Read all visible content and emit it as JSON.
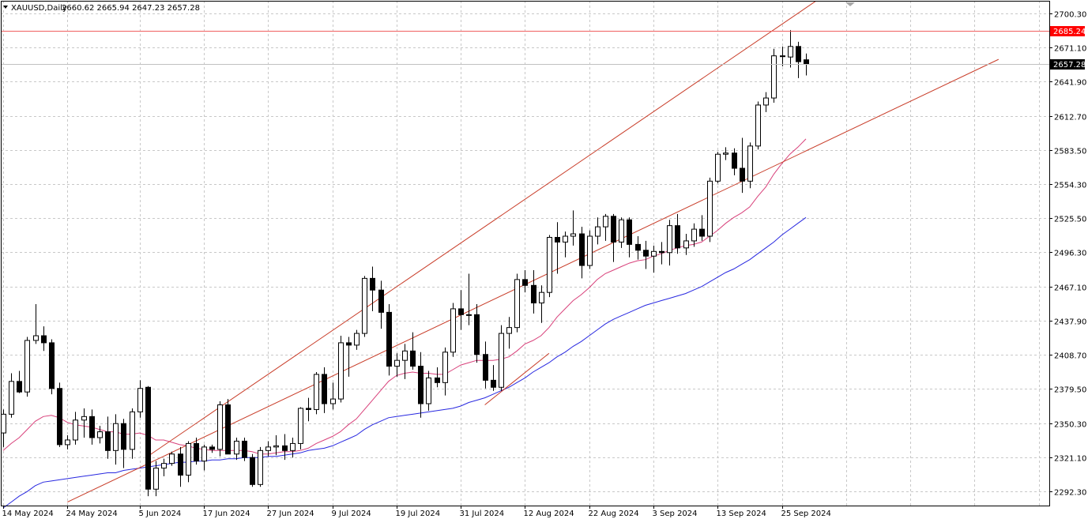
{
  "header": {
    "symbol": "XAUUSD,Daily",
    "ohlc": "2660.62 2665.94 2647.23 2657.28",
    "menu_icon": "triangle-down-icon"
  },
  "colors": {
    "background": "#ffffff",
    "grid": "#c8c8c8",
    "axis": "#000000",
    "candle_bull_fill": "#ffffff",
    "candle_bear_fill": "#000000",
    "ma_fast": "#d8407a",
    "ma_slow": "#2828e0",
    "channel": "#c83c28",
    "resistance": "#f06060",
    "resistance_badge": "#ff0000",
    "price_line": "#c0c0c0",
    "price_badge": "#000000"
  },
  "chart_data": {
    "type": "candlestick",
    "symbol": "XAUUSD",
    "timeframe": "Daily",
    "ylim": [
      2280.0,
      2711.0
    ],
    "y_ticks": [
      "2700.30",
      "2671.10",
      "2641.90",
      "2612.70",
      "2583.50",
      "2554.30",
      "2525.50",
      "2496.30",
      "2467.10",
      "2437.90",
      "2408.70",
      "2379.50",
      "2350.30",
      "2321.10",
      "2292.30"
    ],
    "x_labels": [
      {
        "index": 0,
        "label": "14 May 2024"
      },
      {
        "index": 8,
        "label": "24 May 2024"
      },
      {
        "index": 17,
        "label": "5 Jun 2024"
      },
      {
        "index": 25,
        "label": "17 Jun 2024"
      },
      {
        "index": 33,
        "label": "27 Jun 2024"
      },
      {
        "index": 41,
        "label": "9 Jul 2024"
      },
      {
        "index": 49,
        "label": "19 Jul 2024"
      },
      {
        "index": 57,
        "label": "31 Jul 2024"
      },
      {
        "index": 65,
        "label": "12 Aug 2024"
      },
      {
        "index": 73,
        "label": "22 Aug 2024"
      },
      {
        "index": 81,
        "label": "3 Sep 2024"
      },
      {
        "index": 89,
        "label": "13 Sep 2024"
      },
      {
        "index": 97,
        "label": "25 Sep 2024"
      }
    ],
    "candles": [
      {
        "o": 2342,
        "h": 2362,
        "l": 2330,
        "c": 2358
      },
      {
        "o": 2358,
        "h": 2393,
        "l": 2355,
        "c": 2386
      },
      {
        "o": 2386,
        "h": 2395,
        "l": 2376,
        "c": 2377
      },
      {
        "o": 2377,
        "h": 2424,
        "l": 2373,
        "c": 2421
      },
      {
        "o": 2421,
        "h": 2452,
        "l": 2418,
        "c": 2425
      },
      {
        "o": 2425,
        "h": 2433,
        "l": 2412,
        "c": 2419
      },
      {
        "o": 2419,
        "h": 2422,
        "l": 2375,
        "c": 2380
      },
      {
        "o": 2380,
        "h": 2385,
        "l": 2330,
        "c": 2332
      },
      {
        "o": 2332,
        "h": 2340,
        "l": 2328,
        "c": 2336
      },
      {
        "o": 2336,
        "h": 2360,
        "l": 2332,
        "c": 2353
      },
      {
        "o": 2353,
        "h": 2363,
        "l": 2338,
        "c": 2356
      },
      {
        "o": 2356,
        "h": 2362,
        "l": 2332,
        "c": 2338
      },
      {
        "o": 2338,
        "h": 2348,
        "l": 2333,
        "c": 2343
      },
      {
        "o": 2343,
        "h": 2356,
        "l": 2320,
        "c": 2327
      },
      {
        "o": 2327,
        "h": 2358,
        "l": 2315,
        "c": 2350
      },
      {
        "o": 2350,
        "h": 2354,
        "l": 2312,
        "c": 2328
      },
      {
        "o": 2328,
        "h": 2363,
        "l": 2320,
        "c": 2360
      },
      {
        "o": 2360,
        "h": 2387,
        "l": 2355,
        "c": 2380
      },
      {
        "o": 2381,
        "h": 2382,
        "l": 2288,
        "c": 2294
      },
      {
        "o": 2294,
        "h": 2318,
        "l": 2288,
        "c": 2312
      },
      {
        "o": 2312,
        "h": 2320,
        "l": 2305,
        "c": 2316
      },
      {
        "o": 2316,
        "h": 2326,
        "l": 2314,
        "c": 2324
      },
      {
        "o": 2324,
        "h": 2330,
        "l": 2296,
        "c": 2306
      },
      {
        "o": 2306,
        "h": 2335,
        "l": 2300,
        "c": 2333
      },
      {
        "o": 2333,
        "h": 2338,
        "l": 2315,
        "c": 2318
      },
      {
        "o": 2318,
        "h": 2332,
        "l": 2310,
        "c": 2330
      },
      {
        "o": 2330,
        "h": 2332,
        "l": 2325,
        "c": 2328
      },
      {
        "o": 2328,
        "h": 2369,
        "l": 2322,
        "c": 2366
      },
      {
        "o": 2366,
        "h": 2371,
        "l": 2324,
        "c": 2324
      },
      {
        "o": 2324,
        "h": 2338,
        "l": 2319,
        "c": 2335
      },
      {
        "o": 2335,
        "h": 2338,
        "l": 2318,
        "c": 2321
      },
      {
        "o": 2321,
        "h": 2324,
        "l": 2296,
        "c": 2298
      },
      {
        "o": 2298,
        "h": 2330,
        "l": 2296,
        "c": 2327
      },
      {
        "o": 2327,
        "h": 2335,
        "l": 2322,
        "c": 2330
      },
      {
        "o": 2330,
        "h": 2340,
        "l": 2323,
        "c": 2331
      },
      {
        "o": 2331,
        "h": 2341,
        "l": 2319,
        "c": 2327
      },
      {
        "o": 2327,
        "h": 2338,
        "l": 2321,
        "c": 2333
      },
      {
        "o": 2333,
        "h": 2364,
        "l": 2328,
        "c": 2363
      },
      {
        "o": 2363,
        "h": 2372,
        "l": 2352,
        "c": 2362
      },
      {
        "o": 2362,
        "h": 2394,
        "l": 2358,
        "c": 2392
      },
      {
        "o": 2392,
        "h": 2398,
        "l": 2359,
        "c": 2367
      },
      {
        "o": 2367,
        "h": 2385,
        "l": 2362,
        "c": 2371
      },
      {
        "o": 2371,
        "h": 2425,
        "l": 2368,
        "c": 2419
      },
      {
        "o": 2419,
        "h": 2424,
        "l": 2390,
        "c": 2417
      },
      {
        "o": 2417,
        "h": 2430,
        "l": 2413,
        "c": 2427
      },
      {
        "o": 2427,
        "h": 2476,
        "l": 2424,
        "c": 2474
      },
      {
        "o": 2474,
        "h": 2484,
        "l": 2446,
        "c": 2464
      },
      {
        "o": 2464,
        "h": 2472,
        "l": 2431,
        "c": 2445
      },
      {
        "o": 2445,
        "h": 2452,
        "l": 2391,
        "c": 2399
      },
      {
        "o": 2399,
        "h": 2410,
        "l": 2390,
        "c": 2404
      },
      {
        "o": 2404,
        "h": 2418,
        "l": 2388,
        "c": 2412
      },
      {
        "o": 2412,
        "h": 2428,
        "l": 2396,
        "c": 2399
      },
      {
        "o": 2399,
        "h": 2411,
        "l": 2355,
        "c": 2367
      },
      {
        "o": 2367,
        "h": 2395,
        "l": 2361,
        "c": 2389
      },
      {
        "o": 2389,
        "h": 2398,
        "l": 2381,
        "c": 2385
      },
      {
        "o": 2385,
        "h": 2415,
        "l": 2374,
        "c": 2411
      },
      {
        "o": 2411,
        "h": 2453,
        "l": 2407,
        "c": 2448
      },
      {
        "o": 2448,
        "h": 2464,
        "l": 2430,
        "c": 2443
      },
      {
        "o": 2443,
        "h": 2478,
        "l": 2434,
        "c": 2443
      },
      {
        "o": 2443,
        "h": 2452,
        "l": 2402,
        "c": 2409
      },
      {
        "o": 2409,
        "h": 2420,
        "l": 2380,
        "c": 2387
      },
      {
        "o": 2387,
        "h": 2400,
        "l": 2378,
        "c": 2381
      },
      {
        "o": 2381,
        "h": 2434,
        "l": 2378,
        "c": 2427
      },
      {
        "o": 2427,
        "h": 2441,
        "l": 2414,
        "c": 2432
      },
      {
        "o": 2432,
        "h": 2478,
        "l": 2428,
        "c": 2473
      },
      {
        "o": 2473,
        "h": 2481,
        "l": 2462,
        "c": 2468
      },
      {
        "o": 2468,
        "h": 2481,
        "l": 2444,
        "c": 2453
      },
      {
        "o": 2453,
        "h": 2468,
        "l": 2436,
        "c": 2462
      },
      {
        "o": 2462,
        "h": 2511,
        "l": 2458,
        "c": 2509
      },
      {
        "o": 2509,
        "h": 2522,
        "l": 2478,
        "c": 2505
      },
      {
        "o": 2505,
        "h": 2514,
        "l": 2492,
        "c": 2510
      },
      {
        "o": 2510,
        "h": 2532,
        "l": 2502,
        "c": 2512
      },
      {
        "o": 2512,
        "h": 2518,
        "l": 2474,
        "c": 2485
      },
      {
        "o": 2485,
        "h": 2515,
        "l": 2482,
        "c": 2510
      },
      {
        "o": 2510,
        "h": 2526,
        "l": 2503,
        "c": 2518
      },
      {
        "o": 2518,
        "h": 2529,
        "l": 2506,
        "c": 2527
      },
      {
        "o": 2527,
        "h": 2529,
        "l": 2488,
        "c": 2505
      },
      {
        "o": 2505,
        "h": 2526,
        "l": 2500,
        "c": 2524
      },
      {
        "o": 2524,
        "h": 2526,
        "l": 2492,
        "c": 2503
      },
      {
        "o": 2503,
        "h": 2510,
        "l": 2490,
        "c": 2498
      },
      {
        "o": 2498,
        "h": 2506,
        "l": 2482,
        "c": 2493
      },
      {
        "o": 2493,
        "h": 2502,
        "l": 2479,
        "c": 2497
      },
      {
        "o": 2497,
        "h": 2505,
        "l": 2486,
        "c": 2496
      },
      {
        "o": 2496,
        "h": 2524,
        "l": 2485,
        "c": 2519
      },
      {
        "o": 2519,
        "h": 2529,
        "l": 2495,
        "c": 2500
      },
      {
        "o": 2500,
        "h": 2512,
        "l": 2494,
        "c": 2506
      },
      {
        "o": 2506,
        "h": 2521,
        "l": 2501,
        "c": 2516
      },
      {
        "o": 2516,
        "h": 2528,
        "l": 2506,
        "c": 2510
      },
      {
        "o": 2510,
        "h": 2560,
        "l": 2505,
        "c": 2557
      },
      {
        "o": 2557,
        "h": 2582,
        "l": 2555,
        "c": 2580
      },
      {
        "o": 2580,
        "h": 2586,
        "l": 2575,
        "c": 2581
      },
      {
        "o": 2581,
        "h": 2585,
        "l": 2562,
        "c": 2568
      },
      {
        "o": 2568,
        "h": 2594,
        "l": 2547,
        "c": 2557
      },
      {
        "o": 2557,
        "h": 2590,
        "l": 2551,
        "c": 2587
      },
      {
        "o": 2587,
        "h": 2625,
        "l": 2584,
        "c": 2622
      },
      {
        "o": 2622,
        "h": 2633,
        "l": 2616,
        "c": 2628
      },
      {
        "o": 2628,
        "h": 2670,
        "l": 2624,
        "c": 2664
      },
      {
        "o": 2664,
        "h": 2672,
        "l": 2655,
        "c": 2664
      },
      {
        "o": 2663,
        "h": 2686,
        "l": 2654,
        "c": 2672
      },
      {
        "o": 2672,
        "h": 2676,
        "l": 2645,
        "c": 2659
      },
      {
        "o": 2660.62,
        "h": 2665.94,
        "l": 2647.23,
        "c": 2657.28
      }
    ],
    "ma_fast": {
      "start_index": 0,
      "values": [
        2327,
        2333,
        2338,
        2345,
        2352,
        2356,
        2357,
        2355,
        2351,
        2349,
        2348,
        2347,
        2345,
        2343,
        2343,
        2341,
        2341,
        2342,
        2340,
        2336,
        2336,
        2334,
        2332,
        2331,
        2329,
        2328,
        2327,
        2327,
        2327,
        2327,
        2327,
        2326,
        2324,
        2324,
        2325,
        2326,
        2326,
        2327,
        2329,
        2333,
        2336,
        2339,
        2343,
        2349,
        2354,
        2362,
        2370,
        2378,
        2386,
        2391,
        2393,
        2394,
        2393,
        2393,
        2392,
        2392,
        2396,
        2400,
        2402,
        2404,
        2404,
        2404,
        2405,
        2407,
        2412,
        2418,
        2421,
        2425,
        2432,
        2441,
        2448,
        2455,
        2460,
        2466,
        2473,
        2478,
        2481,
        2484,
        2487,
        2489,
        2490,
        2493,
        2495,
        2498,
        2500,
        2502,
        2503,
        2505,
        2510,
        2515,
        2521,
        2526,
        2530,
        2535,
        2544,
        2552,
        2563,
        2572,
        2580,
        2586,
        2593
      ]
    },
    "ma_slow": {
      "start_index": 0,
      "values": [
        2278,
        2283,
        2288,
        2292,
        2297,
        2300,
        2301,
        2302,
        2303,
        2304,
        2305,
        2306,
        2307,
        2308,
        2308,
        2310,
        2311,
        2312,
        2313,
        2314,
        2315,
        2316,
        2317,
        2317,
        2318,
        2318,
        2319,
        2319,
        2320,
        2320,
        2321,
        2321,
        2321,
        2322,
        2322,
        2323,
        2324,
        2325,
        2327,
        2328,
        2329,
        2331,
        2334,
        2337,
        2340,
        2345,
        2349,
        2352,
        2355,
        2356,
        2357,
        2358,
        2359,
        2360,
        2361,
        2362,
        2363,
        2365,
        2368,
        2370,
        2372,
        2375,
        2378,
        2381,
        2385,
        2389,
        2394,
        2398,
        2402,
        2407,
        2411,
        2416,
        2420,
        2425,
        2430,
        2435,
        2439,
        2442,
        2445,
        2448,
        2451,
        2453,
        2455,
        2457,
        2459,
        2461,
        2464,
        2467,
        2471,
        2475,
        2479,
        2482,
        2486,
        2490,
        2495,
        2500,
        2505,
        2511,
        2516,
        2521,
        2526
      ]
    },
    "channel_upper": {
      "start": {
        "index": 18,
        "price": 2322.0
      },
      "end": {
        "index": 103,
        "price": 2719.0
      }
    },
    "channel_lower": {
      "start": {
        "index": 8,
        "price": 2283.0
      },
      "end": {
        "index": 124,
        "price": 2661.0
      }
    },
    "channel_lower_short": {
      "start": {
        "index": 60,
        "price": 2366.0
      },
      "end": {
        "index": 68,
        "price": 2410.0
      }
    },
    "resistance_level": 2685.24,
    "resistance_label": "2685.24",
    "last_price": 2657.28,
    "last_price_label": "2657.28"
  }
}
